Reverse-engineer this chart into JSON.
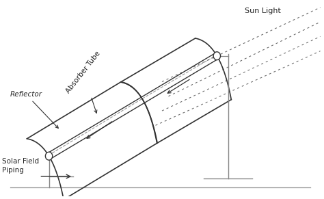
{
  "background_color": "#ffffff",
  "line_color": "#333333",
  "gray_color": "#888888",
  "sun_light_label": "Sun Light",
  "reflector_label": "Reflector",
  "absorber_label": "Absorber Tube",
  "solar_field_label": "Solar Field\nPiping",
  "n_parabola": 40
}
